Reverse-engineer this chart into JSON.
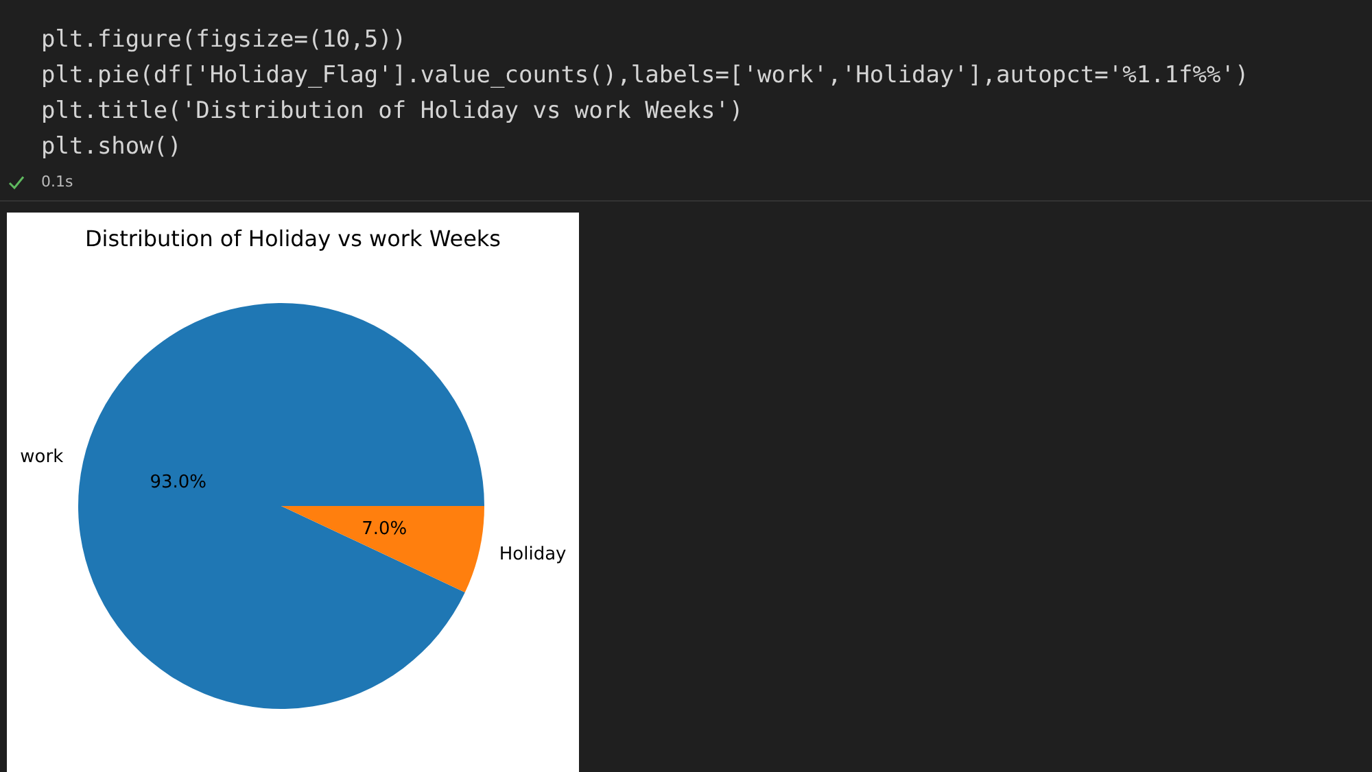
{
  "chart_data": {
    "type": "pie",
    "title": "Distribution of Holiday vs work Weeks",
    "categories": [
      "work",
      "Holiday"
    ],
    "values": [
      93.0,
      7.0
    ],
    "colors": [
      "#1f77b4",
      "#ff7f0e"
    ],
    "value_labels": [
      "93.0%",
      "7.0%"
    ],
    "legend": false,
    "annotations": [
      "plt.figure(figsize=(10,5))",
      "plt.pie(df['Holiday_Flag'].value_counts(),labels=['work','Holiday'],autopct='%1.1f%%')",
      "plt.title('Distribution of Holiday vs work Weeks')",
      "plt.show()",
      "0.1s"
    ]
  }
}
